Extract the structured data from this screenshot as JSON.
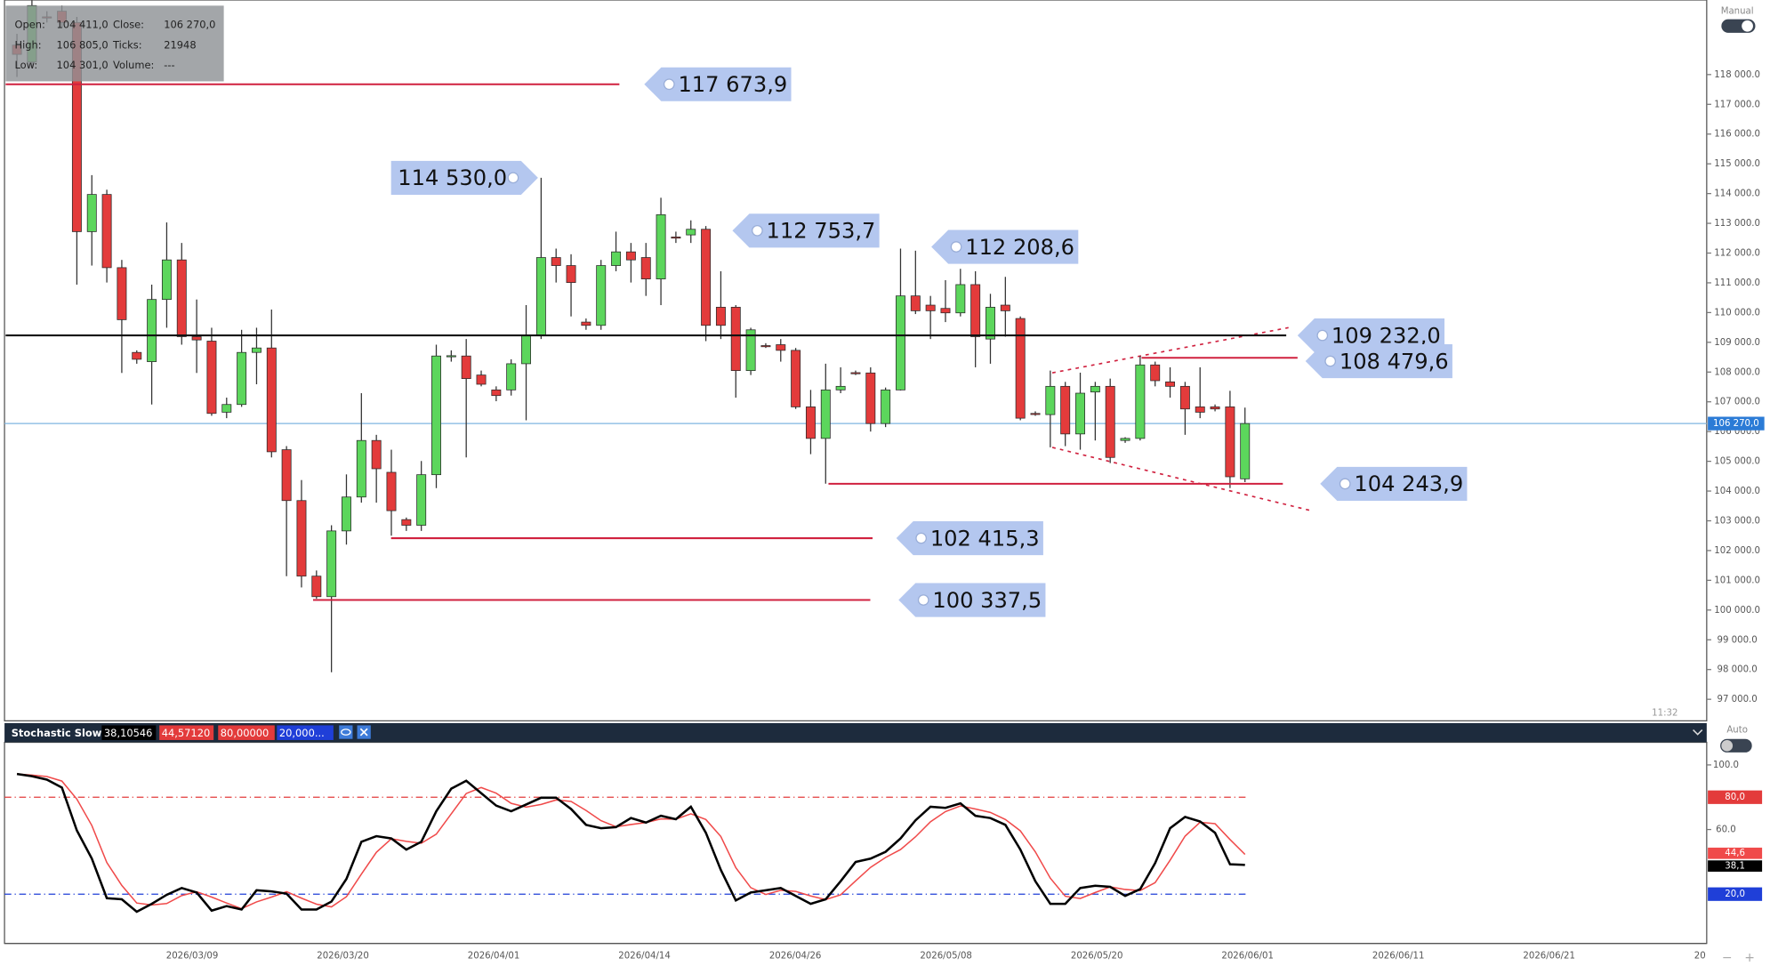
{
  "chart_data": [
    {
      "type": "candlestick",
      "up_color": "#5cd65c",
      "down_color": "#e33b3b",
      "open": [
        118990,
        118420,
        119940,
        120130,
        119750,
        112720,
        113970,
        111510,
        108660,
        108350,
        110440,
        111770,
        109190,
        109040,
        106650,
        106910,
        108660,
        108810,
        105390,
        103680,
        101140,
        100450,
        102660,
        103800,
        105700,
        104630,
        103040,
        102850,
        104550,
        108540,
        108540,
        107900,
        107400,
        107400,
        108280,
        109230,
        111850,
        111580,
        109680,
        109570,
        111580,
        112040,
        111850,
        111130,
        112540,
        112610,
        112800,
        110180,
        110180,
        108050,
        108890,
        108920,
        108730,
        106830,
        105770,
        107400,
        107980,
        107970,
        106270,
        107400,
        110560,
        110250,
        110140,
        109990,
        110940,
        109110,
        110250,
        109800,
        106610,
        106570,
        107520,
        105920,
        107330,
        107520,
        105700,
        105770,
        108240,
        107670,
        107520,
        106830,
        106830,
        106830,
        104411
      ],
      "high": [
        119370,
        120500,
        120130,
        120320,
        119940,
        114620,
        114130,
        111770,
        108730,
        110940,
        113030,
        112340,
        110440,
        109490,
        107140,
        109420,
        109490,
        110100,
        105510,
        104370,
        101330,
        102850,
        104560,
        107290,
        105890,
        105390,
        103110,
        105010,
        108920,
        108730,
        109110,
        108050,
        107520,
        108430,
        110250,
        114530,
        112150,
        111960,
        109800,
        111770,
        112720,
        112340,
        112340,
        113860,
        112720,
        113100,
        112910,
        111390,
        110250,
        109490,
        108970,
        109110,
        108810,
        107400,
        108280,
        108160,
        108050,
        108160,
        107480,
        112150,
        112080,
        110560,
        111090,
        111470,
        111390,
        110630,
        111200,
        109870,
        106680,
        108050,
        107670,
        107980,
        107670,
        107780,
        105810,
        108540,
        108350,
        108160,
        107670,
        108160,
        106910,
        107370,
        106805
      ],
      "low": [
        117920,
        118230,
        119750,
        119560,
        110940,
        111580,
        111010,
        107970,
        108280,
        106910,
        109490,
        108920,
        107970,
        106530,
        106450,
        106830,
        107590,
        105130,
        101140,
        100760,
        100380,
        97910,
        102200,
        103610,
        103610,
        102500,
        102660,
        102660,
        104100,
        108350,
        105130,
        107520,
        107020,
        107210,
        106380,
        109110,
        111010,
        109870,
        109420,
        109420,
        111390,
        111010,
        110560,
        110250,
        112340,
        112340,
        109040,
        109110,
        107140,
        107900,
        108810,
        108350,
        106760,
        105240,
        104250,
        107290,
        107900,
        106000,
        106150,
        107380,
        109950,
        109110,
        109680,
        109870,
        108160,
        108280,
        109190,
        106380,
        106530,
        105470,
        105510,
        105390,
        105700,
        104940,
        105620,
        105700,
        107520,
        107140,
        105890,
        106450,
        106680,
        104100,
        104301
      ],
      "close": [
        118680,
        120320,
        119930,
        119750,
        112720,
        113970,
        111510,
        109760,
        108430,
        110440,
        111770,
        109190,
        109080,
        106610,
        106910,
        108660,
        108810,
        105320,
        103680,
        101140,
        100450,
        102660,
        103800,
        105700,
        104750,
        103340,
        102850,
        104550,
        108540,
        108550,
        107780,
        107590,
        107210,
        108280,
        109230,
        111850,
        111580,
        111010,
        109570,
        111580,
        112040,
        111770,
        111130,
        113290,
        112520,
        112800,
        109570,
        109570,
        108050,
        109420,
        108880,
        108730,
        106830,
        105770,
        107400,
        107520,
        107970,
        106270,
        107400,
        110560,
        110060,
        110060,
        109990,
        110940,
        109190,
        110180,
        110060,
        106450,
        106600,
        107520,
        105920,
        107290,
        107520,
        105130,
        105770,
        108240,
        107710,
        107520,
        106760,
        106650,
        106760,
        104480,
        106270
      ],
      "ylim": [
        96276,
        120507
      ],
      "yticks": [
        {
          "value": 97000,
          "label": "97 000.0"
        },
        {
          "value": 98000,
          "label": "98 000.0"
        },
        {
          "value": 99000,
          "label": "99 000.0"
        },
        {
          "value": 100000,
          "label": "100 000.0"
        },
        {
          "value": 101000,
          "label": "101 000.0"
        },
        {
          "value": 102000,
          "label": "102 000.0"
        },
        {
          "value": 103000,
          "label": "103 000.0"
        },
        {
          "value": 104000,
          "label": "104 000.0"
        },
        {
          "value": 105000,
          "label": "105 000.0"
        },
        {
          "value": 106000,
          "label": "106 000.0"
        },
        {
          "value": 107000,
          "label": "107 000.0"
        },
        {
          "value": 108000,
          "label": "108 000.0"
        },
        {
          "value": 109000,
          "label": "109 000.0"
        },
        {
          "value": 110000,
          "label": "110 000.0"
        },
        {
          "value": 111000,
          "label": "111 000.0"
        },
        {
          "value": 112000,
          "label": "112 000.0"
        },
        {
          "value": 113000,
          "label": "113 000.0"
        },
        {
          "value": 114000,
          "label": "114 000.0"
        },
        {
          "value": 115000,
          "label": "115 000.0"
        },
        {
          "value": 116000,
          "label": "116 000.0"
        },
        {
          "value": 117000,
          "label": "117 000.0"
        },
        {
          "value": 118000,
          "label": "118 000.0"
        }
      ],
      "xtick_labels": [
        "2026/03/09",
        "2026/03/20",
        "2026/04/01",
        "2026/04/14",
        "2026/04/26",
        "2026/05/08",
        "2026/05/20",
        "2026/06/01",
        "2026/06/11",
        "2026/06/21",
        "20"
      ],
      "current_price": {
        "value": 106270,
        "label": "106 270,0",
        "color": "#2b7bd6"
      },
      "levels": [
        {
          "value": 117673.9,
          "label": "117 673,9",
          "color": "#d0213f"
        },
        {
          "value": 114530.0,
          "label": "114 530,0"
        },
        {
          "value": 112753.7,
          "label": "112 753,7"
        },
        {
          "value": 112208.6,
          "label": "112 208,6"
        },
        {
          "value": 109232.0,
          "label": "109 232,0",
          "color": "#111111"
        },
        {
          "value": 108479.6,
          "label": "108 479,6",
          "color": "#d0213f"
        },
        {
          "value": 104243.9,
          "label": "104 243,9",
          "color": "#d0213f"
        },
        {
          "value": 102415.3,
          "label": "102 415,3",
          "color": "#d0213f"
        },
        {
          "value": 100337.5,
          "label": "100 337,5",
          "color": "#d0213f"
        }
      ],
      "tooltip": [
        {
          "name": "Open:",
          "value": 104411,
          "label": "104 411,0"
        },
        {
          "name": "Close:",
          "value": 106270,
          "label": "106 270,0"
        },
        {
          "name": "High:",
          "value": 106805,
          "label": "106 805,0"
        },
        {
          "name": "Ticks:",
          "value": 21948,
          "label": "21948"
        },
        {
          "name": "Low:",
          "value": 104301,
          "label": "104 301,0"
        },
        {
          "name": "Volume:",
          "label": "---"
        }
      ],
      "time": "11:32",
      "mode": "Manual"
    },
    {
      "type": "line",
      "title": "Stochastic Slow",
      "ylim": [
        -10.5,
        114
      ],
      "yticks": [
        {
          "value": 100,
          "label": "100.0"
        },
        {
          "value": 60,
          "label": "60.0"
        }
      ],
      "levels": [
        {
          "value": 80,
          "label": "80,0",
          "header": {
            "value": 80,
            "label": "80,00000"
          },
          "color": "#e33b3b"
        },
        {
          "value": 20,
          "label": "20,0",
          "header": {
            "value": 20,
            "label": "20,000..."
          },
          "color": "#1f3fd8"
        }
      ],
      "series": [
        {
          "color": "#000000",
          "header": {
            "value": 38.10546,
            "label": "38,10546"
          },
          "last_label": {
            "value": 38.1,
            "label": "38,1"
          },
          "values": [
            94.4,
            93.0,
            90.9,
            86.0,
            59.4,
            42.0,
            17.5,
            16.8,
            9.1,
            14.0,
            19.6,
            23.8,
            21.0,
            9.8,
            12.6,
            10.5,
            22.4,
            21.7,
            20.3,
            10.5,
            10.5,
            15.4,
            29.4,
            52.4,
            55.9,
            54.5,
            47.6,
            52.4,
            71.3,
            85.3,
            90.2,
            82.5,
            74.8,
            71.3,
            75.5,
            79.7,
            79.7,
            72.7,
            62.9,
            60.8,
            61.5,
            67.1,
            64.3,
            68.5,
            66.4,
            74.1,
            58.0,
            35.0,
            16.1,
            21.0,
            22.4,
            23.8,
            18.9,
            14.0,
            16.8,
            28.0,
            39.9,
            42.0,
            46.2,
            54.5,
            65.7,
            74.1,
            73.4,
            76.2,
            68.5,
            67.1,
            62.9,
            47.6,
            28.0,
            14.0,
            14.0,
            23.8,
            25.2,
            24.5,
            18.9,
            23.1,
            39.2,
            60.8,
            67.8,
            65.0,
            58.0,
            38.5,
            38.1
          ]
        },
        {
          "color": "#f04a4a",
          "header": {
            "value": 44.5712,
            "label": "44,57120"
          },
          "last_label": {
            "value": 44.6,
            "label": "44,6"
          },
          "values": [
            94.4,
            93.7,
            92.8,
            90.0,
            78.8,
            62.5,
            39.6,
            25.4,
            14.5,
            13.3,
            14.2,
            19.1,
            21.5,
            18.2,
            14.5,
            11.0,
            15.2,
            18.2,
            21.5,
            17.5,
            13.8,
            12.1,
            18.4,
            32.4,
            45.9,
            54.3,
            52.7,
            51.5,
            57.1,
            69.7,
            82.3,
            86.0,
            82.5,
            76.2,
            73.9,
            75.5,
            78.3,
            77.4,
            71.8,
            65.5,
            61.7,
            63.1,
            64.3,
            66.6,
            66.4,
            69.7,
            66.2,
            55.7,
            36.4,
            24.0,
            19.8,
            22.4,
            21.7,
            18.9,
            16.6,
            19.6,
            28.2,
            36.6,
            42.7,
            47.6,
            55.5,
            64.8,
            71.1,
            74.6,
            72.7,
            70.6,
            66.2,
            59.2,
            46.2,
            29.9,
            18.7,
            17.3,
            21.0,
            24.5,
            22.9,
            22.2,
            27.1,
            41.0,
            55.9,
            64.5,
            63.6,
            53.8,
            44.6
          ]
        }
      ],
      "mode": "Auto",
      "controls": [
        "−",
        "+"
      ]
    }
  ]
}
